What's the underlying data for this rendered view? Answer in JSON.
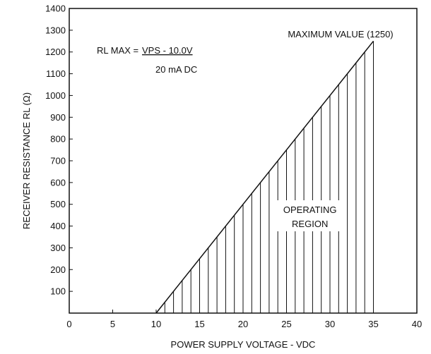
{
  "chart_data": {
    "type": "area",
    "title": "",
    "xlabel": "POWER SUPPLY VOLTAGE - VDC",
    "ylabel": "RECEIVER RESISTANCE RL (Ω)",
    "xlim": [
      0,
      40
    ],
    "ylim": [
      0,
      1400
    ],
    "x_ticks": [
      0,
      5,
      10,
      15,
      20,
      25,
      30,
      35,
      40
    ],
    "y_ticks": [
      100,
      200,
      300,
      400,
      500,
      600,
      700,
      800,
      900,
      1000,
      1100,
      1200,
      1300,
      1400
    ],
    "grid": false,
    "series": [
      {
        "x": [
          10,
          35
        ],
        "y": [
          0,
          1250
        ]
      }
    ],
    "hatch_x_start": 11,
    "hatch_x_end": 35,
    "hatch_step": 1,
    "annotations": {
      "formula_prefix": "RL MAX = ",
      "formula_numerator": "VPS - 10.0V",
      "formula_denominator": "20 mA DC",
      "max_value": "MAXIMUM VALUE (1250)",
      "region_line1": "OPERATING",
      "region_line2": "REGION"
    }
  }
}
